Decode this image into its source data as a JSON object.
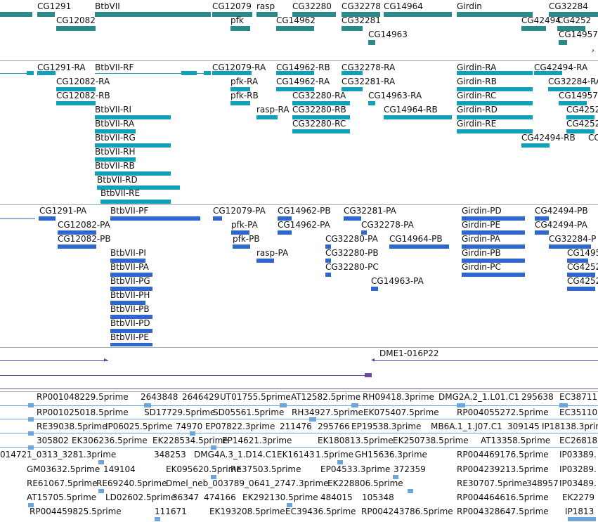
{
  "colors": {
    "gene": "#2a8a8a",
    "transcript": "#11a0b8",
    "cds": "#2f67cc",
    "clone": "#6b4ba6",
    "est": "#6aa6dd"
  },
  "genes": [
    {
      "label": "CG1291"
    },
    {
      "label": "BtbVII"
    },
    {
      "label": "CG12082"
    },
    {
      "label": "CG12079"
    },
    {
      "label": "rasp"
    },
    {
      "label": "CG32280"
    },
    {
      "label": "CG32278"
    },
    {
      "label": "CG14964"
    },
    {
      "label": "Girdin"
    },
    {
      "label": "CG32284"
    },
    {
      "label": "pfk"
    },
    {
      "label": "CG14962"
    },
    {
      "label": "CG32281"
    },
    {
      "label": "CG14963"
    },
    {
      "label": "CG42494"
    },
    {
      "label": "CG4252"
    },
    {
      "label": "CG14957"
    }
  ],
  "transcripts": [
    {
      "label": "CG1291-RA"
    },
    {
      "label": "BtbVII-RF"
    },
    {
      "label": "CG12079-RA"
    },
    {
      "label": "CG14962-RB"
    },
    {
      "label": "CG32278-RA"
    },
    {
      "label": "Girdin-RA"
    },
    {
      "label": "CG42494-RA"
    },
    {
      "label": "CG12082-RA"
    },
    {
      "label": "pfk-RA"
    },
    {
      "label": "CG14962-RA"
    },
    {
      "label": "CG32281-RA"
    },
    {
      "label": "Girdin-RB"
    },
    {
      "label": "CG32284-RA"
    },
    {
      "label": "CG12082-RB"
    },
    {
      "label": "pfk-RB"
    },
    {
      "label": "CG32280-RA"
    },
    {
      "label": "CG14963-RA"
    },
    {
      "label": "Girdin-RC"
    },
    {
      "label": "CG14957"
    },
    {
      "label": "BtbVII-RI"
    },
    {
      "label": "rasp-RA"
    },
    {
      "label": "CG32280-RB"
    },
    {
      "label": "CG14964-RB"
    },
    {
      "label": "Girdin-RD"
    },
    {
      "label": "CG4252"
    },
    {
      "label": "BtbVII-RA"
    },
    {
      "label": "CG32280-RC"
    },
    {
      "label": "Girdin-RE"
    },
    {
      "label": "CG4252"
    },
    {
      "label": "BtbVII-RG"
    },
    {
      "label": "CG42494-RB"
    },
    {
      "label": "CC"
    },
    {
      "label": "BtbVII-RH"
    },
    {
      "label": "BtbVII-RB"
    },
    {
      "label": "BtbVII-RD"
    },
    {
      "label": "BtbVII-RE"
    }
  ],
  "proteins": [
    {
      "label": "CG1291-PA"
    },
    {
      "label": "BtbVII-PF"
    },
    {
      "label": "CG12079-PA"
    },
    {
      "label": "CG14962-PB"
    },
    {
      "label": "CG32281-PA"
    },
    {
      "label": "Girdin-PD"
    },
    {
      "label": "CG42494-PB"
    },
    {
      "label": "CG12082-PA"
    },
    {
      "label": "pfk-PA"
    },
    {
      "label": "CG14962-PA"
    },
    {
      "label": "CG32278-PA"
    },
    {
      "label": "Girdin-PE"
    },
    {
      "label": "CG42494-PA"
    },
    {
      "label": "CG12082-PB"
    },
    {
      "label": "pfk-PB"
    },
    {
      "label": "CG32280-PA"
    },
    {
      "label": "CG14964-PB"
    },
    {
      "label": "Girdin-PA"
    },
    {
      "label": "CG32284-P"
    },
    {
      "label": "BtbVII-PI"
    },
    {
      "label": "rasp-PA"
    },
    {
      "label": "CG32280-PB"
    },
    {
      "label": "Girdin-PB"
    },
    {
      "label": "CG14957"
    },
    {
      "label": "BtbVII-PA"
    },
    {
      "label": "CG32280-PC"
    },
    {
      "label": "Girdin-PC"
    },
    {
      "label": "CG4252"
    },
    {
      "label": "BtbVII-PG"
    },
    {
      "label": "CG14963-PA"
    },
    {
      "label": "CG4252"
    },
    {
      "label": "BtbVII-PH"
    },
    {
      "label": "BtbVII-PB"
    },
    {
      "label": "BtbVII-PD"
    },
    {
      "label": "BtbVII-PE"
    }
  ],
  "clones": [
    {
      "label": "DME1-016P22"
    }
  ],
  "ests": [
    {
      "label": "RP001048229.5prime"
    },
    {
      "label": "2643848"
    },
    {
      "label": "2646429"
    },
    {
      "label": "UT01755.5prime"
    },
    {
      "label": "AT12582.5prime"
    },
    {
      "label": "RH09418.3prime"
    },
    {
      "label": "DMG2A.2_1.L01.C1"
    },
    {
      "label": "295638"
    },
    {
      "label": "EC38711"
    },
    {
      "label": "RP001025018.5prime"
    },
    {
      "label": "SD17729.5prime"
    },
    {
      "label": "SD05561.5prime"
    },
    {
      "label": "RH34927.5prime"
    },
    {
      "label": "EK075407.5prime"
    },
    {
      "label": "RP004055272.5prime"
    },
    {
      "label": "EC35110"
    },
    {
      "label": "RE39038.5prime"
    },
    {
      "label": "IP06025.5prime"
    },
    {
      "label": "74970"
    },
    {
      "label": "EP07822.3prime"
    },
    {
      "label": "211476"
    },
    {
      "label": "295766"
    },
    {
      "label": "EP19538.3prime"
    },
    {
      "label": "MB6A.1_1.J07.C1"
    },
    {
      "label": "309145"
    },
    {
      "label": "IP18138.3prime"
    },
    {
      "label": "305802"
    },
    {
      "label": "EK306236.5prime"
    },
    {
      "label": "EK228534.5prime"
    },
    {
      "label": "EP14621.3prime"
    },
    {
      "label": "EK180813.5prime"
    },
    {
      "label": "EK250738.5prime"
    },
    {
      "label": "AT13358.5prime"
    },
    {
      "label": "EC26818"
    },
    {
      "label": "014721_0313_3281.3prime"
    },
    {
      "label": "348253"
    },
    {
      "label": "DMG4A.3_1.D14.C1"
    },
    {
      "label": "EK16143"
    },
    {
      "label": "1.5prime"
    },
    {
      "label": "GH15636.3prime"
    },
    {
      "label": "RP004469176.5prime"
    },
    {
      "label": "IP03389."
    },
    {
      "label": "GM03632.5prime"
    },
    {
      "label": "149104"
    },
    {
      "label": "EK095620.5prime"
    },
    {
      "label": "RE37503.5prime"
    },
    {
      "label": "EP04533.3prime"
    },
    {
      "label": "372359"
    },
    {
      "label": "RP004239213.5prime"
    },
    {
      "label": "IP03289."
    },
    {
      "label": "RE61067.5prime"
    },
    {
      "label": "RE69240.5prime"
    },
    {
      "label": "Dmel_neb_003789_0641_2747.3prime"
    },
    {
      "label": "EK228806.5prime"
    },
    {
      "label": "RE30707.5prime"
    },
    {
      "label": "348957"
    },
    {
      "label": "IP03489."
    },
    {
      "label": "AT15705.5prime"
    },
    {
      "label": "LD02602.5prime"
    },
    {
      "label": "36347"
    },
    {
      "label": "474166"
    },
    {
      "label": "EK292130.5prime"
    },
    {
      "label": "484015"
    },
    {
      "label": "105348"
    },
    {
      "label": "RP004464616.5prime"
    },
    {
      "label": "EK2279"
    },
    {
      "label": "RP004459825.5prime"
    },
    {
      "label": "111671"
    },
    {
      "label": "EK193208.5prime"
    },
    {
      "label": "EC39436.5prime"
    },
    {
      "label": "RP004243786.5prime"
    },
    {
      "label": "RP004328647.5prime"
    },
    {
      "label": "IP1813"
    }
  ]
}
